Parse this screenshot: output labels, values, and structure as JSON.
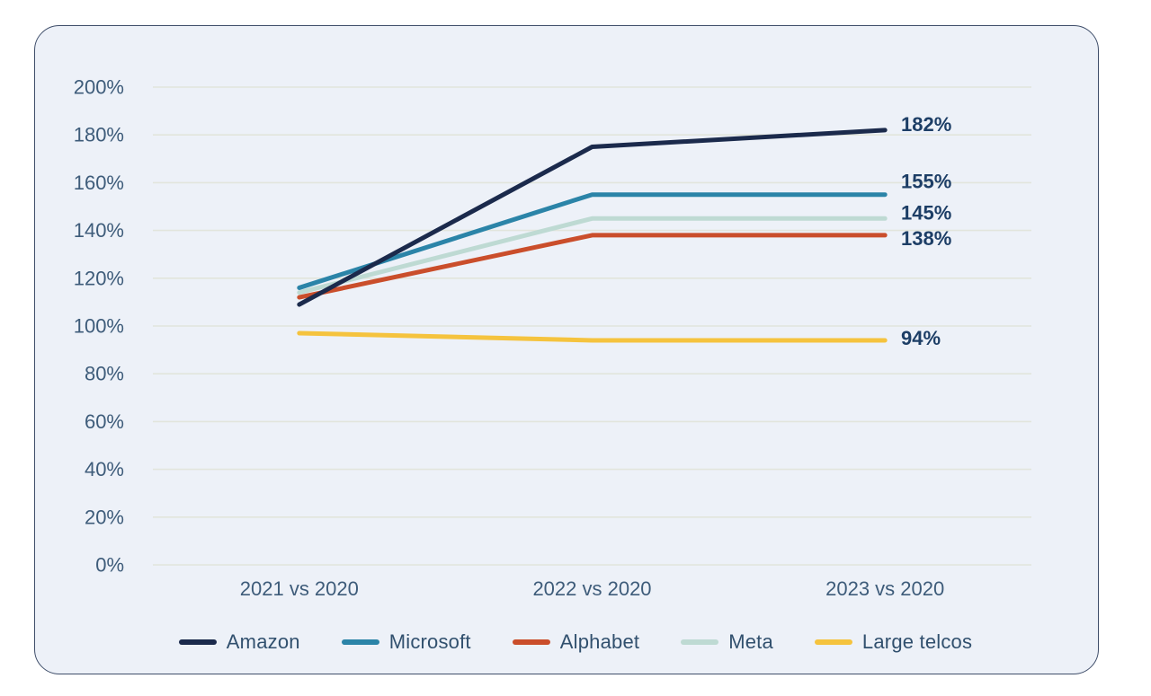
{
  "chart_data": {
    "type": "line",
    "title": "",
    "xlabel": "",
    "ylabel": "",
    "categories": [
      "2021 vs 2020",
      "2022 vs 2020",
      "2023 vs 2020"
    ],
    "series": [
      {
        "name": "Amazon",
        "color": "#1b2a4c",
        "values": [
          109,
          175,
          182
        ],
        "end_label": "182%"
      },
      {
        "name": "Microsoft",
        "color": "#2b84a8",
        "values": [
          116,
          155,
          155
        ],
        "end_label": "155%"
      },
      {
        "name": "Alphabet",
        "color": "#ca4e2b",
        "values": [
          112,
          138,
          138
        ],
        "end_label": "138%"
      },
      {
        "name": "Meta",
        "color": "#bedad3",
        "values": [
          114,
          145,
          145
        ],
        "end_label": "145%"
      },
      {
        "name": "Large telcos",
        "color": "#f5c33e",
        "values": [
          97,
          94,
          94
        ],
        "end_label": "94%"
      }
    ],
    "ylim": [
      0,
      200
    ],
    "ytick_step": 20,
    "ytick_suffix": "%",
    "grid": true,
    "legend_position": "bottom"
  },
  "colors": {
    "page_background": "#ffffff",
    "card_background": "#edf1f8",
    "card_border": "#3f4e6a",
    "gridline": "#e2e5dc",
    "axis_text": "#3e5c7a",
    "end_label_text": "#1d3e66",
    "legend_text": "#31506e"
  }
}
